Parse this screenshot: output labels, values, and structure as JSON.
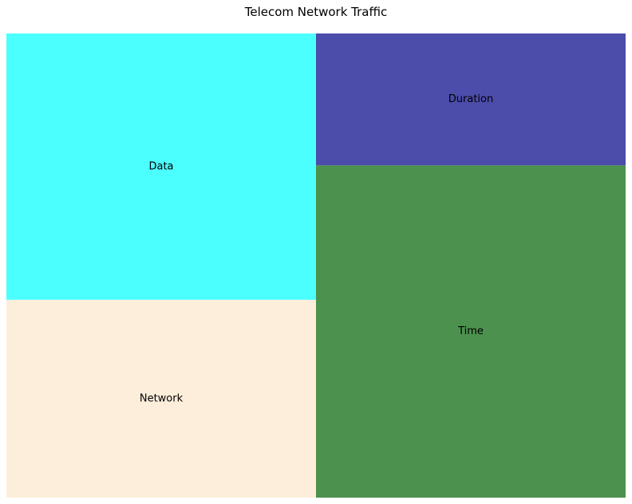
{
  "chart_data": {
    "type": "treemap",
    "title": "Telecom Network Traffic",
    "items": [
      {
        "label": "Data",
        "value": 1050,
        "color": "#4CFFFF"
      },
      {
        "label": "Network",
        "value": 780,
        "color": "#FDEEDB"
      },
      {
        "label": "Duration",
        "value": 520,
        "color": "#4C4CAA"
      },
      {
        "label": "Time",
        "value": 1310,
        "color": "#4C914E"
      }
    ]
  }
}
